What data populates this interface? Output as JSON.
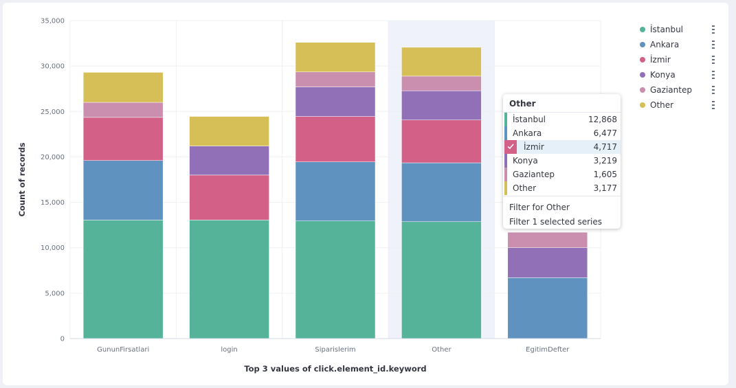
{
  "chart_data": {
    "type": "bar",
    "stacked": true,
    "categories": [
      "GununFirsatlari",
      "login",
      "Siparislerim",
      "Other",
      "EgitimDefter"
    ],
    "series": [
      {
        "name": "İstanbul",
        "color": "#54b399",
        "values": [
          13050,
          13050,
          12950,
          12868,
          0
        ]
      },
      {
        "name": "Ankara",
        "color": "#6092c0",
        "values": [
          6550,
          0,
          6500,
          6477,
          6700
        ]
      },
      {
        "name": "İzmir",
        "color": "#d36086",
        "values": [
          4750,
          4950,
          5000,
          4717,
          0
        ]
      },
      {
        "name": "Konya",
        "color": "#9170b8",
        "values": [
          0,
          3200,
          3250,
          3219,
          3300
        ]
      },
      {
        "name": "Gaziantep",
        "color": "#ca8eae",
        "values": [
          1650,
          0,
          1650,
          1605,
          1700
        ]
      },
      {
        "name": "Other",
        "color": "#d6bf57",
        "values": [
          3300,
          3250,
          3250,
          3177,
          0
        ]
      }
    ],
    "highlight_category": "Other",
    "xlabel": "Top 3 values of click.element_id.keyword",
    "ylabel": "Count of records",
    "ylim": [
      0,
      35000
    ],
    "yticks": [
      "0",
      "5,000",
      "10,000",
      "15,000",
      "20,000",
      "25,000",
      "30,000",
      "35,000"
    ],
    "ytick_values": [
      0,
      5000,
      10000,
      15000,
      20000,
      25000,
      30000,
      35000
    ],
    "grid": true,
    "legend_position": "right"
  },
  "legend": {
    "items": [
      {
        "label": "İstanbul",
        "color": "#54b399"
      },
      {
        "label": "Ankara",
        "color": "#6092c0"
      },
      {
        "label": "İzmir",
        "color": "#d36086"
      },
      {
        "label": "Konya",
        "color": "#9170b8"
      },
      {
        "label": "Gaziantep",
        "color": "#ca8eae"
      },
      {
        "label": "Other",
        "color": "#d6bf57"
      }
    ]
  },
  "tooltip": {
    "title": "Other",
    "rows": [
      {
        "name": "İstanbul",
        "value": "12,868",
        "color": "#54b399"
      },
      {
        "name": "Ankara",
        "value": "6,477",
        "color": "#6092c0"
      },
      {
        "name": "İzmir",
        "value": "4,717",
        "color": "#d36086",
        "selected": true
      },
      {
        "name": "Konya",
        "value": "3,219",
        "color": "#9170b8"
      },
      {
        "name": "Gaziantep",
        "value": "1,605",
        "color": "#ca8eae"
      },
      {
        "name": "Other",
        "value": "3,177",
        "color": "#d6bf57"
      }
    ],
    "actions": [
      "Filter for Other",
      "Filter 1 selected series"
    ]
  }
}
